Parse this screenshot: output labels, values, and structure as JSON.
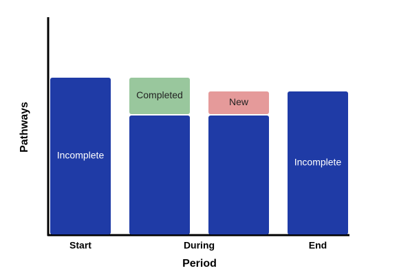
{
  "chart_data": {
    "type": "stacked-bar",
    "x_label": "Period",
    "y_label": "Pathways",
    "categories": [
      "Start",
      "During",
      "End"
    ],
    "ylim": [
      0,
      317
    ],
    "bars": [
      {
        "category": 0,
        "segments": [
          {
            "value": 230,
            "color": "#1f3ba6",
            "label": "Incomplete"
          }
        ]
      },
      {
        "category": 1,
        "segments": [
          {
            "value": 175,
            "color": "#1f3ba6"
          },
          {
            "value": 55,
            "color": "#99c79d",
            "label": "Completed"
          }
        ]
      },
      {
        "category": 1,
        "segments": [
          {
            "value": 175,
            "color": "#1f3ba6"
          },
          {
            "value": 35,
            "color": "#e59a9a",
            "label": "New"
          }
        ]
      },
      {
        "category": 2,
        "segments": [
          {
            "value": 210,
            "color": "#1f3ba6",
            "label": "Incomplete"
          }
        ]
      }
    ]
  }
}
